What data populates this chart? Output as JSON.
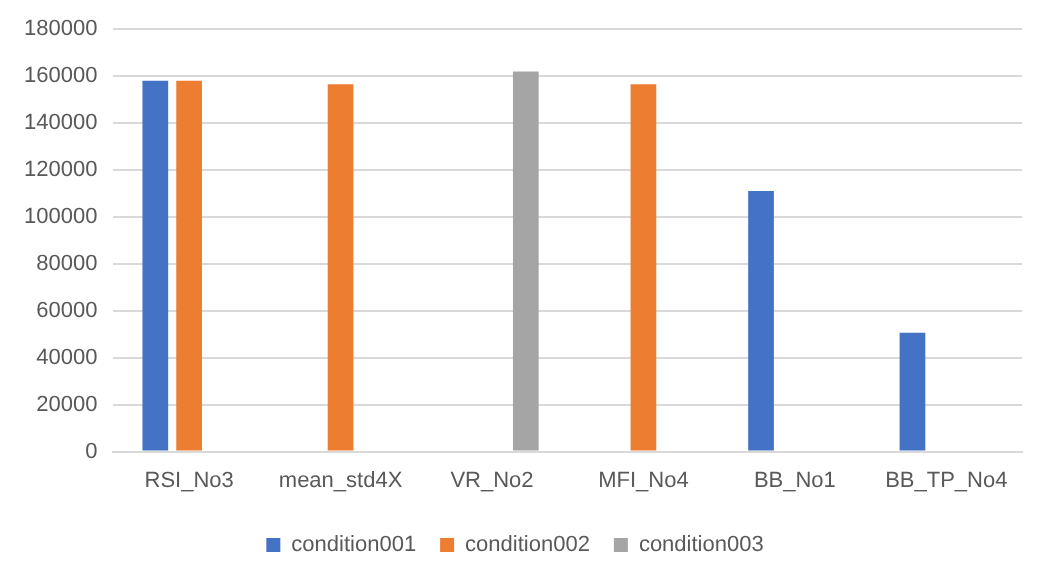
{
  "chart_data": {
    "type": "bar",
    "categories": [
      "RSI_No3",
      "mean_std4X",
      "VR_No2",
      "MFI_No4",
      "BB_No1",
      "BB_TP_No4"
    ],
    "series": [
      {
        "name": "condition001",
        "color": "#4472c4",
        "values": [
          158000,
          null,
          null,
          null,
          111000,
          50600
        ]
      },
      {
        "name": "condition002",
        "color": "#ed7d31",
        "values": [
          158000,
          156500,
          null,
          156500,
          null,
          null
        ]
      },
      {
        "name": "condition003",
        "color": "#a5a5a5",
        "values": [
          null,
          null,
          162000,
          null,
          null,
          null
        ]
      }
    ],
    "ylim": [
      0,
      180000
    ],
    "yticks": [
      0,
      20000,
      40000,
      60000,
      80000,
      100000,
      120000,
      140000,
      160000,
      180000
    ],
    "grid": "y",
    "legend": "bottom"
  }
}
